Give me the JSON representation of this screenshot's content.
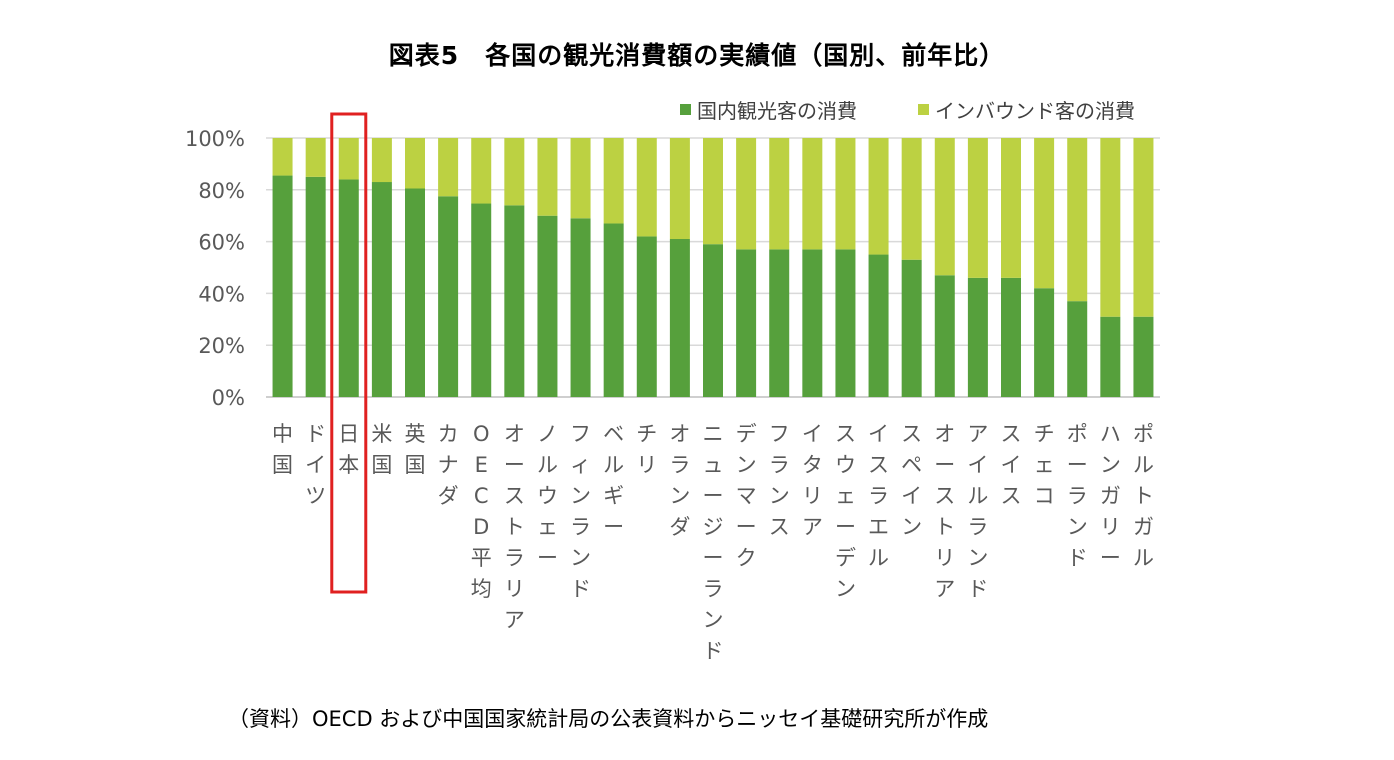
{
  "chart_data": {
    "type": "bar",
    "stacked": true,
    "title": "図表5　各国の観光消費額の実績値（国別、前年比）",
    "categories": [
      "中国",
      "ドイツ",
      "日本",
      "米国",
      "英国",
      "カナダ",
      "OECD平均",
      "オーストラリア",
      "ノルウェー",
      "フィンランド",
      "ベルギー",
      "チリ",
      "オランダ",
      "ニュージーランド",
      "デンマーク",
      "フランス",
      "イタリア",
      "スウェーデン",
      "イスラエル",
      "スペイン",
      "オーストリア",
      "アイルランド",
      "スイス",
      "チェコ",
      "ポーランド",
      "ハンガリー",
      "ポルトガル"
    ],
    "series": [
      {
        "name": "国内観光客の消費",
        "color": "#56a03c",
        "values": [
          85.5,
          85,
          84,
          83,
          80.5,
          77.5,
          74.7,
          74,
          70,
          69,
          67,
          62,
          61,
          59,
          57,
          57,
          57,
          57,
          55,
          53,
          47,
          46,
          46,
          42,
          37,
          31,
          31
        ]
      },
      {
        "name": "インバウンド客の消費",
        "color": "#bcd142",
        "values": [
          14.5,
          15,
          16,
          17,
          19.5,
          22.5,
          25.3,
          26,
          30,
          31,
          33,
          38,
          39,
          41,
          43,
          43,
          43,
          43,
          45,
          47,
          53,
          54,
          54,
          58,
          63,
          69,
          69
        ]
      }
    ],
    "yticks": [
      "0%",
      "20%",
      "40%",
      "60%",
      "80%",
      "100%"
    ],
    "ylim": [
      0,
      100
    ],
    "grid": true,
    "legend_position": "top-right",
    "highlight_category": "日本",
    "highlight_color": "#e02020"
  },
  "source_note": "（資料）OECD および中国国家統計局の公表資料からニッセイ基礎研究所が作成"
}
